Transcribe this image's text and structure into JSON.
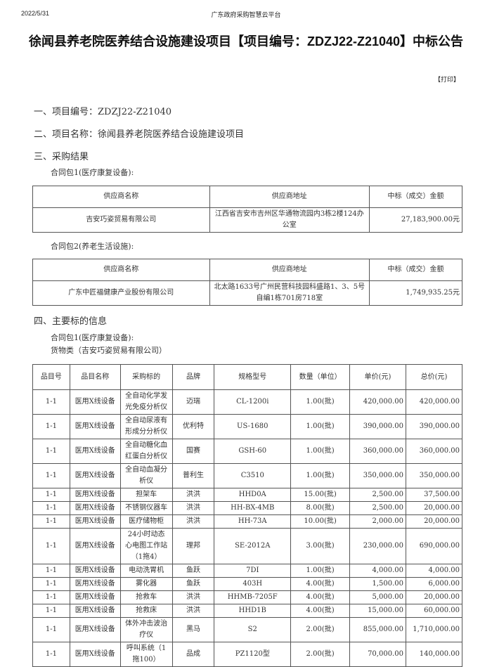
{
  "header": {
    "date": "2022/5/31",
    "site": "广东政府采购智慧云平台"
  },
  "title": "徐闻县养老院医养结合设施建设项目【项目编号：ZDZJ22-Z21040】中标公告",
  "print_label": "【打印】",
  "sections": {
    "s1": "一、项目编号：ZDZJ22-Z21040",
    "s2": "二、项目名称：徐闻县养老院医养结合设施建设项目",
    "s3": "三、采购结果",
    "s4": "四、主要标的信息"
  },
  "supplier_headers": [
    "供应商名称",
    "供应商地址",
    "中标（成交）金额"
  ],
  "packages": [
    {
      "label": "合同包1(医疗康复设备):",
      "name": "吉安巧姿贸易有限公司",
      "address": "江西省吉安市吉州区华通物流园内3栋2楼124办公室",
      "amount": "27,183,900.00元"
    },
    {
      "label": "合同包2(养老生活设施):",
      "name": "广东中匠福健康产业股份有限公司",
      "address": "北太路1633号广州民营科技园科盛路1、3、5号自编1栋701房718室",
      "amount": "1,749,935.25元"
    }
  ],
  "items_section": {
    "package": "合同包1(医疗康复设备):",
    "category": "货物类（吉安巧姿贸易有限公司）"
  },
  "item_headers": [
    "品目号",
    "品目名称",
    "采购标的",
    "品牌",
    "规格型号",
    "数量（单位）",
    "单价(元)",
    "总价(元)"
  ],
  "items": [
    [
      "1-1",
      "医用X线设备",
      "全自动化学发光免疫分析仪",
      "迈瑞",
      "CL-1200i",
      "1.00(批)",
      "420,000.00",
      "420,000.00"
    ],
    [
      "1-1",
      "医用X线设备",
      "全自动尿液有形成分分析仪",
      "优利特",
      "US-1680",
      "1.00(批)",
      "390,000.00",
      "390,000.00"
    ],
    [
      "1-1",
      "医用X线设备",
      "全自动糖化血红蛋白分析仪",
      "国赛",
      "GSH-60",
      "1.00(批)",
      "360,000.00",
      "360,000.00"
    ],
    [
      "1-1",
      "医用X线设备",
      "全自动血凝分析仪",
      "普利生",
      "C3510",
      "1.00(批)",
      "350,000.00",
      "350,000.00"
    ],
    [
      "1-1",
      "医用X线设备",
      "担架车",
      "洪洪",
      "HHD0A",
      "15.00(批)",
      "2,500.00",
      "37,500.00"
    ],
    [
      "1-1",
      "医用X线设备",
      "不锈钢仪器车",
      "洪洪",
      "HH-BX-4MB",
      "8.00(批)",
      "2,500.00",
      "20,000.00"
    ],
    [
      "1-1",
      "医用X线设备",
      "医疗储物柜",
      "洪洪",
      "HH-73A",
      "10.00(批)",
      "2,000.00",
      "20,000.00"
    ],
    [
      "1-1",
      "医用X线设备",
      "24小时动态心电图工作站（1拖4）",
      "理邦",
      "SE-2012A",
      "3.00(批)",
      "230,000.00",
      "690,000.00"
    ],
    [
      "1-1",
      "医用X线设备",
      "电动洗胃机",
      "鱼跃",
      "7DI",
      "1.00(批)",
      "4,000.00",
      "4,000.00"
    ],
    [
      "1-1",
      "医用X线设备",
      "雾化器",
      "鱼跃",
      "403H",
      "4.00(批)",
      "1,500.00",
      "6,000.00"
    ],
    [
      "1-1",
      "医用X线设备",
      "抢救车",
      "洪洪",
      "HHMB-7205F",
      "4.00(批)",
      "5,000.00",
      "20,000.00"
    ],
    [
      "1-1",
      "医用X线设备",
      "抢救床",
      "洪洪",
      "HHD1B",
      "4.00(批)",
      "15,000.00",
      "60,000.00"
    ],
    [
      "1-1",
      "医用X线设备",
      "体外冲击波治疗仪",
      "黑马",
      "S2",
      "2.00(批)",
      "855,000.00",
      "1,710,000.00"
    ],
    [
      "1-1",
      "医用X线设备",
      "呼叫系统（1拖100）",
      "品成",
      "PZ1120型",
      "2.00(批)",
      "70,000.00",
      "140,000.00"
    ]
  ]
}
